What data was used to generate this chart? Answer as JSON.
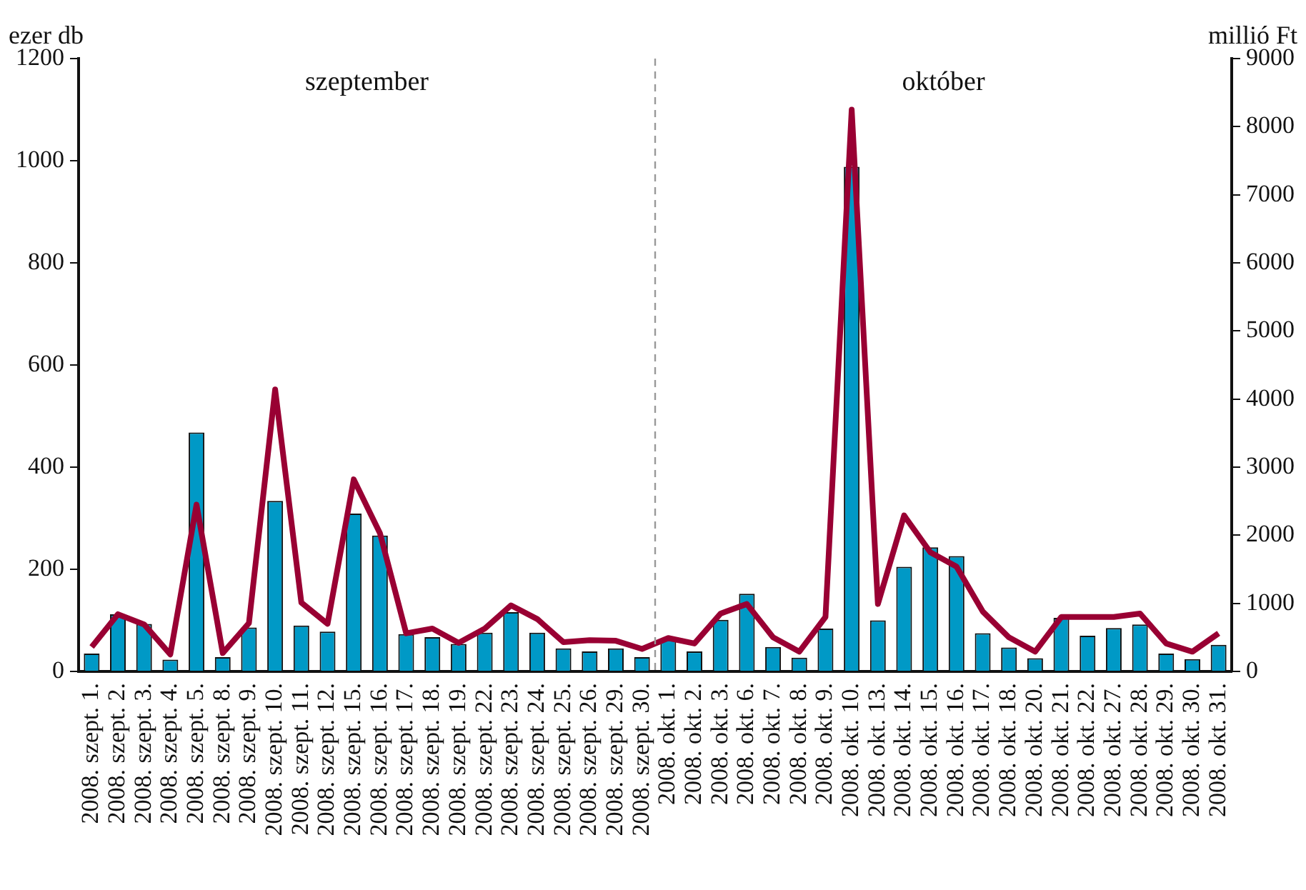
{
  "chart_data": {
    "type": "bar",
    "ylabel": "ezer db",
    "y2label": "millió Ft",
    "categories": [
      "2008. szept. 1.",
      "2008. szept. 2.",
      "2008. szept. 3.",
      "2008. szept. 4.",
      "2008. szept. 5.",
      "2008. szept. 8.",
      "2008. szept. 9.",
      "2008. szept. 10.",
      "2008. szept. 11.",
      "2008. szept. 12.",
      "2008. szept. 15.",
      "2008. szept. 16.",
      "2008. szept. 17.",
      "2008. szept. 18.",
      "2008. szept. 19.",
      "2008. szept. 22.",
      "2008. szept. 23.",
      "2008. szept. 24.",
      "2008. szept. 25.",
      "2008. szept. 26.",
      "2008. szept. 29.",
      "2008. szept. 30.",
      "2008. okt. 1.",
      "2008. okt. 2.",
      "2008. okt. 3.",
      "2008. okt. 6.",
      "2008. okt. 7.",
      "2008. okt. 8.",
      "2008. okt. 9.",
      "2008. okt. 10.",
      "2008. okt. 13.",
      "2008. okt. 14.",
      "2008. okt. 15.",
      "2008. okt. 16.",
      "2008. okt. 17.",
      "2008. okt. 18.",
      "2008. okt. 20.",
      "2008. okt. 21.",
      "2008. okt. 22.",
      "2008. okt. 27.",
      "2008. okt. 28.",
      "2008. okt. 29.",
      "2008. okt. 30.",
      "2008. okt. 31."
    ],
    "series": [
      {
        "color": "#0099c6",
        "values": [
          35,
          112,
          93,
          23,
          468,
          28,
          86,
          334,
          90,
          78,
          309,
          266,
          73,
          67,
          54,
          76,
          116,
          76,
          45,
          39,
          45,
          28,
          62,
          39,
          101,
          152,
          48,
          27,
          84,
          988,
          100,
          205,
          243,
          226,
          75,
          47,
          26,
          105,
          70,
          85,
          92,
          35,
          24,
          52
        ]
      },
      {
        "type": "line",
        "axis": "y2",
        "color": "#990033",
        "values": [
          360,
          840,
          690,
          250,
          2450,
          270,
          710,
          4140,
          1010,
          700,
          2820,
          2030,
          560,
          630,
          420,
          630,
          970,
          770,
          430,
          460,
          450,
          330,
          490,
          410,
          850,
          990,
          500,
          290,
          800,
          8250,
          990,
          2290,
          1750,
          1540,
          880,
          500,
          290,
          800,
          800,
          800,
          850,
          410,
          290,
          560
        ]
      }
    ],
    "ylim": [
      0,
      1200
    ],
    "yticks": [
      0,
      200,
      400,
      600,
      800,
      1000,
      1200
    ],
    "y2lim": [
      0,
      9000
    ],
    "y2ticks": [
      0,
      1000,
      2000,
      3000,
      4000,
      5000,
      6000,
      7000,
      8000,
      9000
    ],
    "annotations": [
      "szeptember",
      "október"
    ],
    "grid": false,
    "legend": false,
    "marker": "none",
    "line_style": "solid"
  }
}
